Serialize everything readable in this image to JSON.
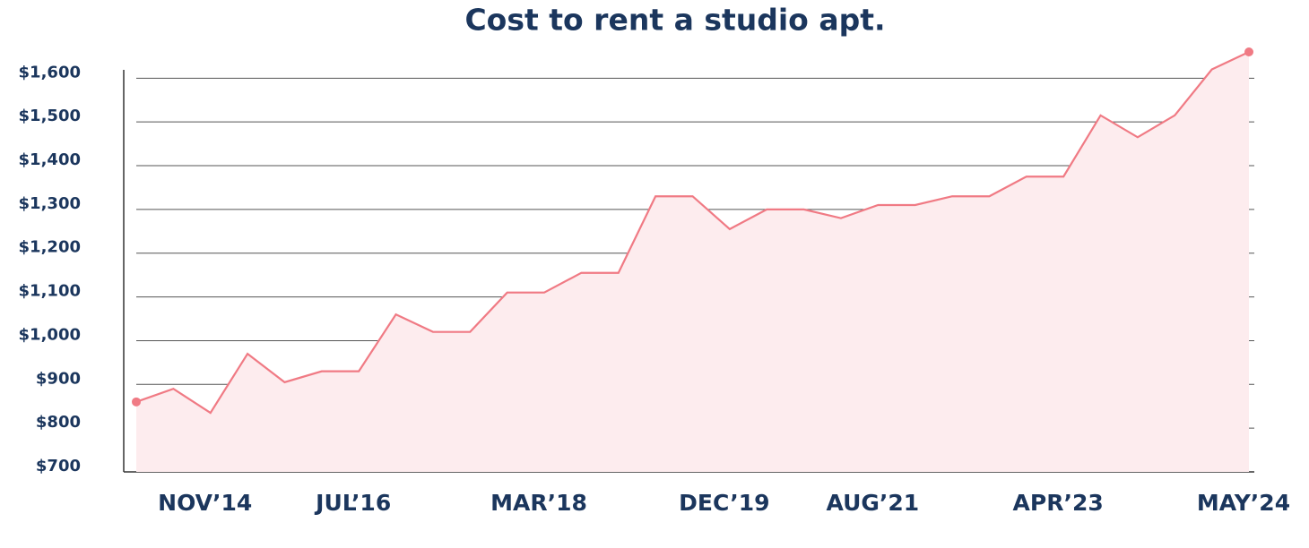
{
  "chart_data": {
    "type": "area",
    "title": "Cost to rent a studio apt.",
    "categories": [
      null,
      null,
      "NOV’14",
      null,
      null,
      null,
      "JUL’16",
      null,
      null,
      null,
      null,
      "MAR’18",
      null,
      null,
      null,
      null,
      "DEC’19",
      null,
      null,
      null,
      "AUG’21",
      null,
      null,
      null,
      null,
      "APR’23",
      null,
      null,
      null,
      null,
      "MAY’24"
    ],
    "series": [
      {
        "color": "#f07a84",
        "fill": "#fdecee",
        "values": [
          860,
          890,
          835,
          970,
          905,
          930,
          930,
          1060,
          1020,
          1020,
          1110,
          1110,
          1155,
          1155,
          1330,
          1330,
          1255,
          1300,
          1300,
          1280,
          1310,
          1310,
          1330,
          1330,
          1375,
          1375,
          1515,
          1465,
          1515,
          1620,
          1660
        ]
      }
    ],
    "ylim": [
      700,
      1660
    ],
    "yticks": [
      {
        "value": 700,
        "label": "$700"
      },
      {
        "value": 800,
        "label": "$800"
      },
      {
        "value": 900,
        "label": "$900"
      },
      {
        "value": 1000,
        "label": "$1,000"
      },
      {
        "value": 1100,
        "label": "$1,100"
      },
      {
        "value": 1200,
        "label": "$1,200"
      },
      {
        "value": 1300,
        "label": "$1,300"
      },
      {
        "value": 1400,
        "label": "$1,400"
      },
      {
        "value": 1500,
        "label": "$1,500"
      },
      {
        "value": 1600,
        "label": "$1,600"
      }
    ],
    "grid": true,
    "end_markers": true
  }
}
